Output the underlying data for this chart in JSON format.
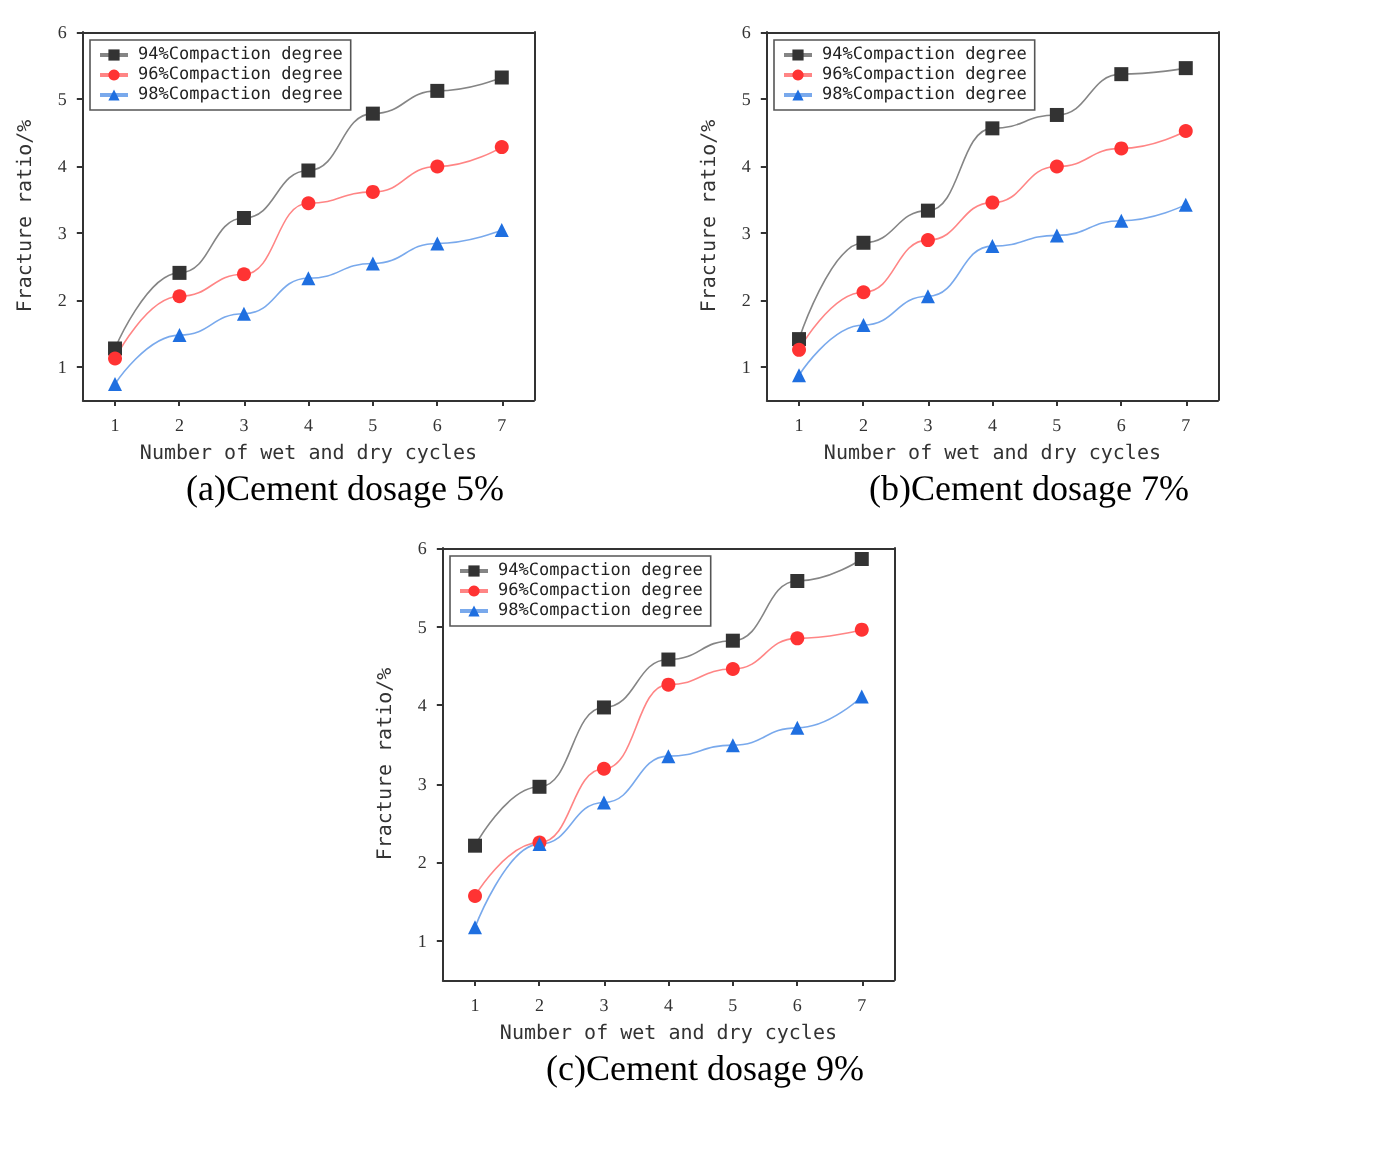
{
  "chart_data": [
    {
      "type": "line",
      "title": "(a)Cement dosage 5%",
      "xlabel": "Number of wet and dry cycles",
      "ylabel": "Fracture ratio/%",
      "x": [
        1,
        2,
        3,
        4,
        5,
        6,
        7
      ],
      "xlim": [
        0.5,
        7.5
      ],
      "xticks": [
        1,
        2,
        3,
        4,
        5,
        6,
        7
      ],
      "ylim": [
        0.5,
        6
      ],
      "yticks": [
        1,
        2,
        3,
        4,
        5,
        6
      ],
      "grid": false,
      "legend": "top left",
      "series": [
        {
          "name": "94%Compaction degree",
          "color": "#333333",
          "marker": "square",
          "values": [
            1.27,
            2.4,
            3.22,
            3.93,
            4.78,
            5.12,
            5.32
          ]
        },
        {
          "name": "96%Compaction degree",
          "color": "#ff3333",
          "marker": "circle",
          "values": [
            1.12,
            2.05,
            2.38,
            3.44,
            3.61,
            3.99,
            4.28
          ]
        },
        {
          "name": "98%Compaction degree",
          "color": "#1f6fe0",
          "marker": "triangle",
          "values": [
            0.74,
            1.47,
            1.79,
            2.32,
            2.54,
            2.84,
            3.04
          ]
        }
      ]
    },
    {
      "type": "line",
      "title": "(b)Cement dosage 7%",
      "xlabel": "Number of wet and dry cycles",
      "ylabel": "Fracture ratio/%",
      "x": [
        1,
        2,
        3,
        4,
        5,
        6,
        7
      ],
      "xlim": [
        0.5,
        7.5
      ],
      "xticks": [
        1,
        2,
        3,
        4,
        5,
        6,
        7
      ],
      "ylim": [
        0.5,
        6
      ],
      "yticks": [
        1,
        2,
        3,
        4,
        5,
        6
      ],
      "grid": false,
      "legend": "top left",
      "series": [
        {
          "name": "94%Compaction degree",
          "color": "#333333",
          "marker": "square",
          "values": [
            1.41,
            2.85,
            3.33,
            4.56,
            4.76,
            5.37,
            5.46
          ]
        },
        {
          "name": "96%Compaction degree",
          "color": "#ff3333",
          "marker": "circle",
          "values": [
            1.25,
            2.11,
            2.89,
            3.45,
            3.99,
            4.26,
            4.52
          ]
        },
        {
          "name": "98%Compaction degree",
          "color": "#1f6fe0",
          "marker": "triangle",
          "values": [
            0.87,
            1.62,
            2.05,
            2.8,
            2.96,
            3.18,
            3.42
          ]
        }
      ]
    },
    {
      "type": "line",
      "title": "(c)Cement dosage 9%",
      "xlabel": "Number of wet and dry cycles",
      "ylabel": "Fracture ratio/%",
      "x": [
        1,
        2,
        3,
        4,
        5,
        6,
        7
      ],
      "xlim": [
        0.5,
        7.5
      ],
      "xticks": [
        1,
        2,
        3,
        4,
        5,
        6,
        7
      ],
      "ylim": [
        0.5,
        6
      ],
      "yticks": [
        1,
        2,
        3,
        4,
        5,
        6
      ],
      "grid": false,
      "legend": "top left",
      "series": [
        {
          "name": "94%Compaction degree",
          "color": "#333333",
          "marker": "square",
          "values": [
            2.21,
            2.96,
            3.97,
            4.58,
            4.82,
            5.58,
            5.86
          ]
        },
        {
          "name": "96%Compaction degree",
          "color": "#ff3333",
          "marker": "circle",
          "values": [
            1.57,
            2.25,
            3.19,
            4.26,
            4.46,
            4.85,
            4.96
          ]
        },
        {
          "name": "98%Compaction degree",
          "color": "#1f6fe0",
          "marker": "triangle",
          "values": [
            1.17,
            2.23,
            2.76,
            3.35,
            3.49,
            3.71,
            4.11
          ]
        }
      ]
    }
  ]
}
